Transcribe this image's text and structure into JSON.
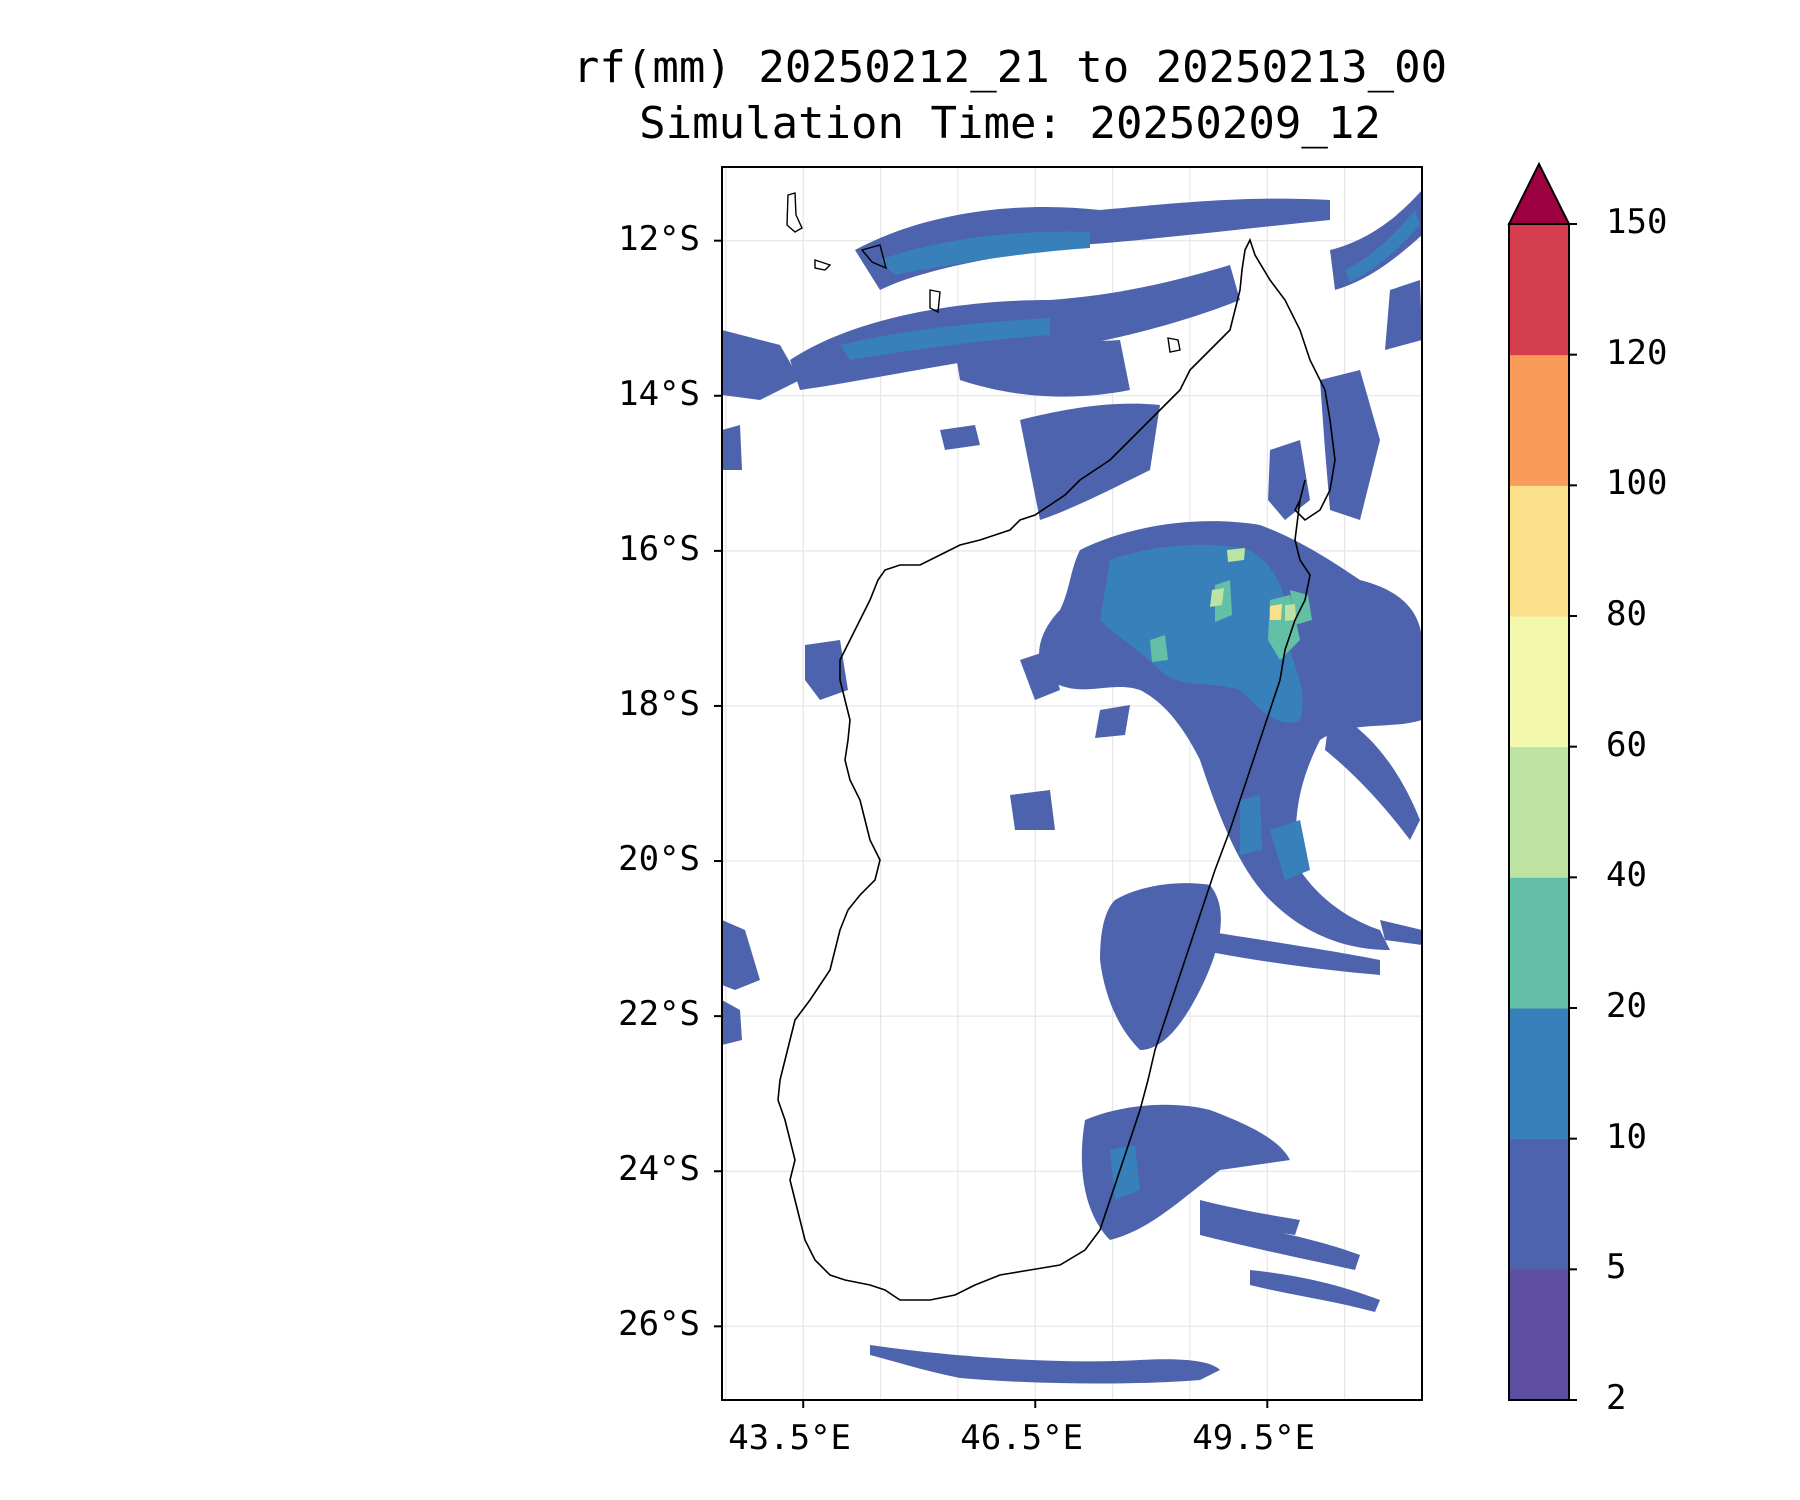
{
  "figure": {
    "title_line1": "rf(mm) 20250212_21 to 20250213_00",
    "title_line2": "Simulation Time: 20250209_12"
  },
  "map": {
    "lat_labels": [
      "12°S",
      "14°S",
      "16°S",
      "18°S",
      "20°S",
      "22°S",
      "24°S",
      "26°S"
    ],
    "lon_labels": [
      "43.5°E",
      "46.5°E",
      "49.5°E"
    ],
    "extent": {
      "lon_min": 42.45,
      "lon_max": 51.5,
      "lat_min": -26.95,
      "lat_max": -11.05
    },
    "grid": true
  },
  "colorbar": {
    "ticks": [
      "2",
      "5",
      "10",
      "20",
      "40",
      "60",
      "80",
      "100",
      "120",
      "150"
    ],
    "colors": [
      "#5e4fa2",
      "#4e63ad",
      "#3880b9",
      "#63bfa5",
      "#bde3a3",
      "#f2f9ad",
      "#fbe08c",
      "#f99c5a",
      "#d53e4f"
    ],
    "extend_color": "#9e0142",
    "extend": "max"
  },
  "legend_units": "mm"
}
